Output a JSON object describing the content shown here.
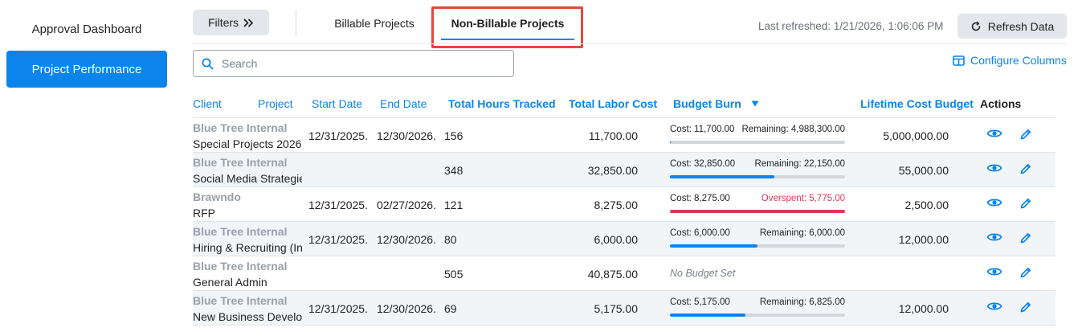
{
  "sidebar": {
    "items": [
      {
        "label": "Approval Dashboard"
      },
      {
        "label": "Project Performance"
      }
    ]
  },
  "toolbar": {
    "filters_label": "Filters",
    "filters_icon": "double-chevron-right-icon",
    "tabs": [
      {
        "label": "Billable Projects",
        "active": false
      },
      {
        "label": "Non-Billable Projects",
        "active": true
      }
    ],
    "last_refreshed": "Last refreshed: 1/21/2026, 1:06:06 PM",
    "refresh_label": "Refresh Data"
  },
  "search": {
    "placeholder": "Search",
    "value": ""
  },
  "configure_columns_label": "Configure Columns",
  "table": {
    "headers": {
      "client": "Client",
      "project": "Project",
      "start": "Start Date",
      "end": "End Date",
      "hours": "Total Hours Tracked",
      "labor": "Total Labor Cost",
      "burn": "Budget Burn",
      "budget": "Lifetime Cost Budget",
      "actions": "Actions"
    },
    "rows": [
      {
        "client": "Blue Tree Internal",
        "project": "Special Projects 2026",
        "start": "12/31/2025.",
        "end": "12/30/2026.",
        "hours": "156",
        "labor": "11,700.00",
        "cost_label": "Cost: 11,700.00",
        "remaining_label": "Remaining: 4,988,300.00",
        "burn_fraction": 0.0023,
        "over": false,
        "no_budget": false,
        "budget": "5,000,000.00"
      },
      {
        "client": "Blue Tree Internal",
        "project": "Social Media Strategie",
        "start": "",
        "end": "",
        "hours": "348",
        "labor": "32,850.00",
        "cost_label": "Cost: 32,850.00",
        "remaining_label": "Remaining: 22,150.00",
        "burn_fraction": 0.597,
        "over": false,
        "no_budget": false,
        "budget": "55,000.00"
      },
      {
        "client": "Brawndo",
        "project": "RFP",
        "start": "12/31/2025.",
        "end": "02/27/2026.",
        "hours": "121",
        "labor": "8,275.00",
        "cost_label": "Cost: 8,275.00",
        "remaining_label": "Overspent: 5,775.00",
        "burn_fraction": 1,
        "over": true,
        "no_budget": false,
        "budget": "2,500.00"
      },
      {
        "client": "Blue Tree Internal",
        "project": "Hiring & Recruiting (In",
        "start": "12/31/2025.",
        "end": "12/30/2026.",
        "hours": "80",
        "labor": "6,000.00",
        "cost_label": "Cost: 6,000.00",
        "remaining_label": "Remaining: 6,000.00",
        "burn_fraction": 0.5,
        "over": false,
        "no_budget": false,
        "budget": "12,000.00"
      },
      {
        "client": "Blue Tree Internal",
        "project": "General Admin",
        "start": "",
        "end": "",
        "hours": "505",
        "labor": "40,875.00",
        "cost_label": "",
        "remaining_label": "",
        "no_budget_label": "No Budget Set",
        "burn_fraction": 0,
        "over": false,
        "no_budget": true,
        "budget": ""
      },
      {
        "client": "Blue Tree Internal",
        "project": "New Business Develop",
        "start": "12/31/2025.",
        "end": "12/30/2026.",
        "hours": "69",
        "labor": "5,175.00",
        "cost_label": "Cost: 5,175.00",
        "remaining_label": "Remaining: 6,825.00",
        "burn_fraction": 0.431,
        "over": false,
        "no_budget": false,
        "budget": "12,000.00"
      }
    ]
  },
  "colors": {
    "accent": "#0b84ec",
    "overspent": "#e0355a",
    "highlight_box": "#e5473a"
  }
}
